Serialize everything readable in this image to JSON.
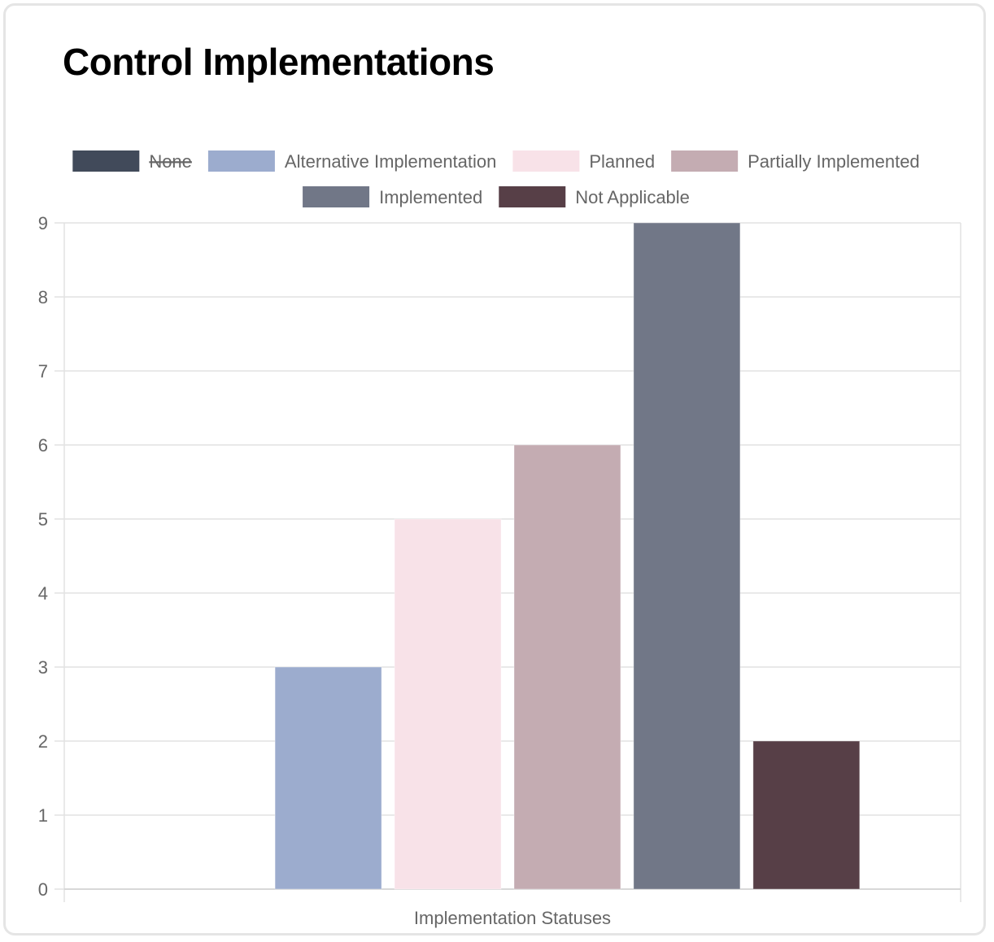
{
  "card": {
    "title": "Control Implementations"
  },
  "chart_data": {
    "type": "bar",
    "xlabel": "Implementation Statuses",
    "ylabel": "",
    "ylim": [
      0,
      9
    ],
    "yticks": [
      0,
      1,
      2,
      3,
      4,
      5,
      6,
      7,
      8,
      9
    ],
    "grid": true,
    "legend_position": "top",
    "series": [
      {
        "name": "None",
        "value": 0,
        "color": "#414a5a",
        "hidden": true
      },
      {
        "name": "Alternative Implementation",
        "value": 3,
        "color": "#9cacce"
      },
      {
        "name": "Planned",
        "value": 5,
        "color": "#f8e2e8"
      },
      {
        "name": "Partially Implemented",
        "value": 6,
        "color": "#c4acb2"
      },
      {
        "name": "Implemented",
        "value": 9,
        "color": "#717787"
      },
      {
        "name": "Not Applicable",
        "value": 2,
        "color": "#573f47"
      }
    ]
  }
}
